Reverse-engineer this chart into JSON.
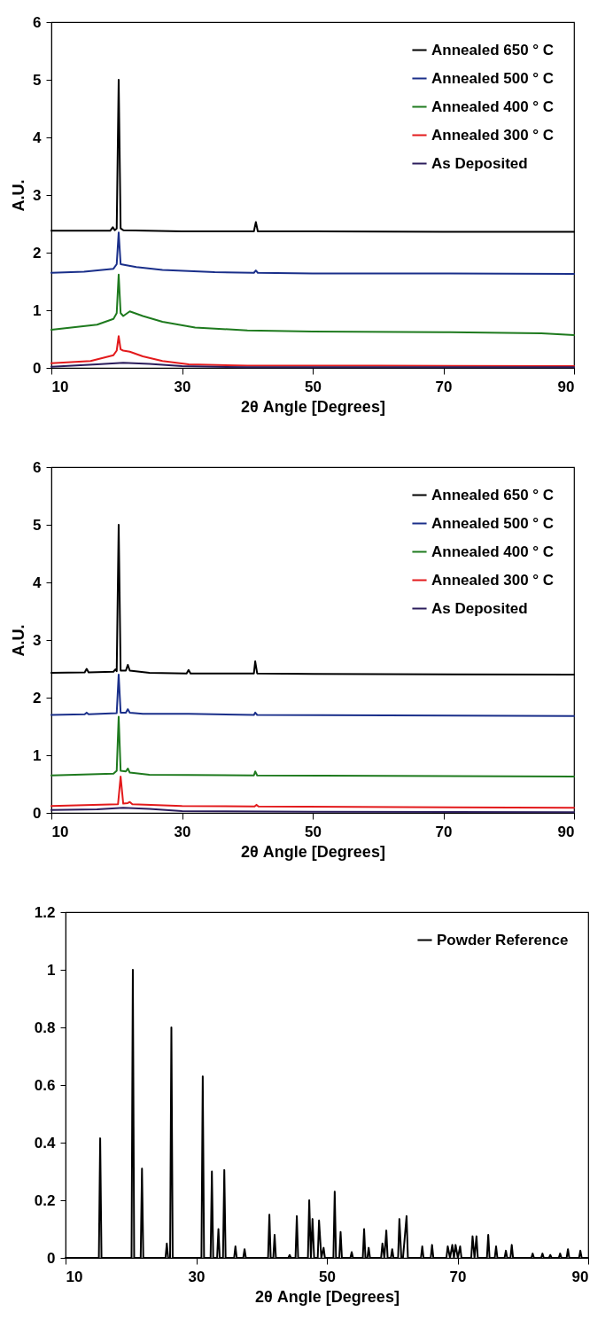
{
  "chart_data": [
    {
      "type": "line",
      "xlabel": "2θ Angle [Degrees]",
      "ylabel": "A.U.",
      "xlim": [
        10,
        90
      ],
      "ylim": [
        0,
        6
      ],
      "xticks": [
        10,
        30,
        50,
        70,
        90
      ],
      "yticks": [
        0,
        1,
        2,
        3,
        4,
        5,
        6
      ],
      "legend": "top right",
      "series": [
        {
          "name": "Annealed 650 ° C",
          "color": "#000000",
          "x": [
            10,
            19,
            19.4,
            19.7,
            20,
            20.3,
            20.6,
            21,
            30,
            41,
            41.3,
            41.6,
            50,
            70,
            90
          ],
          "values": [
            2.38,
            2.38,
            2.44,
            2.39,
            2.42,
            5.0,
            2.42,
            2.39,
            2.37,
            2.37,
            2.53,
            2.37,
            2.37,
            2.36,
            2.36
          ]
        },
        {
          "name": "Annealed 500 ° C",
          "color": "#1a2f8a",
          "x": [
            10,
            15,
            19.5,
            20,
            20.3,
            20.6,
            21.5,
            23,
            27,
            35,
            41,
            41.3,
            41.6,
            50,
            70,
            90
          ],
          "values": [
            1.65,
            1.67,
            1.72,
            1.8,
            2.35,
            1.8,
            1.78,
            1.75,
            1.7,
            1.66,
            1.65,
            1.69,
            1.65,
            1.64,
            1.64,
            1.63
          ]
        },
        {
          "name": "Annealed 400 ° C",
          "color": "#1e7a1e",
          "x": [
            10,
            17,
            19.5,
            20,
            20.3,
            20.6,
            21,
            22,
            24,
            27,
            32,
            40,
            50,
            70,
            85,
            90
          ],
          "values": [
            0.66,
            0.75,
            0.85,
            0.95,
            1.62,
            0.95,
            0.9,
            0.98,
            0.9,
            0.8,
            0.7,
            0.65,
            0.63,
            0.62,
            0.6,
            0.57
          ]
        },
        {
          "name": "Annealed 300 ° C",
          "color": "#e31a1c",
          "x": [
            10,
            16,
            19.5,
            20,
            20.3,
            20.6,
            21,
            22,
            24,
            27,
            31,
            40,
            60,
            90
          ],
          "values": [
            0.08,
            0.12,
            0.22,
            0.3,
            0.55,
            0.32,
            0.3,
            0.28,
            0.2,
            0.12,
            0.06,
            0.04,
            0.04,
            0.03
          ]
        },
        {
          "name": "As Deposited",
          "color": "#2b1d5c",
          "x": [
            10,
            17,
            21,
            25,
            30,
            40,
            90
          ],
          "values": [
            0.02,
            0.06,
            0.09,
            0.07,
            0.03,
            0.01,
            0.01
          ]
        }
      ]
    },
    {
      "type": "line",
      "xlabel": "2θ Angle [Degrees]",
      "ylabel": "A.U.",
      "xlim": [
        10,
        90
      ],
      "ylim": [
        0,
        6
      ],
      "xticks": [
        10,
        30,
        50,
        70,
        90
      ],
      "yticks": [
        0,
        1,
        2,
        3,
        4,
        5,
        6
      ],
      "legend": "top right",
      "series": [
        {
          "name": "Annealed 650 ° C",
          "color": "#000000",
          "x": [
            10,
            15.1,
            15.4,
            15.7,
            19.5,
            19.8,
            20.0,
            20.3,
            20.6,
            21.4,
            21.7,
            22.0,
            25,
            30.7,
            31,
            31.3,
            41,
            41.2,
            41.5,
            50,
            90
          ],
          "values": [
            2.43,
            2.44,
            2.5,
            2.44,
            2.45,
            2.49,
            2.46,
            5.0,
            2.47,
            2.47,
            2.57,
            2.47,
            2.43,
            2.42,
            2.48,
            2.42,
            2.42,
            2.63,
            2.42,
            2.41,
            2.4
          ]
        },
        {
          "name": "Annealed 500 ° C",
          "color": "#1a2f8a",
          "x": [
            10,
            15.1,
            15.4,
            15.7,
            20.0,
            20.3,
            20.6,
            21.4,
            21.7,
            22.0,
            24,
            31,
            41,
            41.2,
            41.5,
            90
          ],
          "values": [
            1.7,
            1.71,
            1.74,
            1.71,
            1.73,
            2.4,
            1.74,
            1.74,
            1.8,
            1.74,
            1.72,
            1.72,
            1.7,
            1.74,
            1.7,
            1.68
          ]
        },
        {
          "name": "Annealed 400 ° C",
          "color": "#1e7a1e",
          "x": [
            10,
            19.5,
            20.0,
            20.3,
            20.6,
            21.4,
            21.7,
            22.0,
            25,
            41,
            41.2,
            41.5,
            90
          ],
          "values": [
            0.65,
            0.68,
            0.73,
            1.67,
            0.73,
            0.72,
            0.77,
            0.7,
            0.66,
            0.65,
            0.72,
            0.65,
            0.63
          ]
        },
        {
          "name": "Annealed 300 ° C",
          "color": "#e31a1c",
          "x": [
            10,
            20.2,
            20.6,
            21.0,
            21.7,
            22,
            22.4,
            30,
            41.1,
            41.4,
            41.7,
            90
          ],
          "values": [
            0.12,
            0.15,
            0.63,
            0.16,
            0.17,
            0.19,
            0.15,
            0.12,
            0.11,
            0.14,
            0.11,
            0.09
          ]
        },
        {
          "name": "As Deposited",
          "color": "#2b1d5c",
          "x": [
            10,
            17,
            21,
            25,
            30,
            50,
            90
          ],
          "values": [
            0.05,
            0.06,
            0.09,
            0.07,
            0.03,
            0.02,
            0.01
          ]
        }
      ]
    },
    {
      "type": "line",
      "xlabel": "2θ Angle [Degrees]",
      "xlim": [
        10,
        90
      ],
      "ylim": [
        0,
        1.2
      ],
      "xticks": [
        10,
        30,
        50,
        70,
        90
      ],
      "yticks": [
        0,
        0.2,
        0.4,
        0.6,
        0.8,
        1,
        1.2
      ],
      "legend": "top right",
      "series": [
        {
          "name": "Powder Reference",
          "color": "#000000",
          "x": [
            10,
            15.1,
            15.3,
            15.5,
            20.1,
            20.3,
            20.5,
            21.5,
            21.7,
            21.9,
            25.3,
            25.5,
            25.7,
            26.0,
            26.2,
            26.4,
            30.8,
            31.0,
            31.2,
            32.2,
            32.4,
            32.6,
            33.2,
            33.4,
            33.6,
            34.1,
            34.3,
            34.5,
            35.8,
            36.0,
            36.2,
            37.2,
            37.4,
            37.6,
            41.0,
            41.2,
            41.4,
            41.8,
            42.0,
            42.2,
            44.1,
            44.3,
            44.5,
            45.2,
            45.4,
            45.6,
            47.1,
            47.3,
            47.55,
            47.8,
            48.05,
            48.6,
            48.8,
            49.15,
            49.5,
            49.7,
            51.0,
            51.2,
            51.4,
            51.9,
            52.1,
            52.3,
            53.6,
            53.8,
            54.0,
            55.5,
            55.7,
            55.9,
            56.2,
            56.4,
            56.6,
            58.3,
            58.5,
            58.8,
            59.1,
            59.3,
            59.8,
            60.0,
            60.2,
            60.9,
            61.1,
            61.4,
            61.65,
            62.2,
            62.4,
            64.4,
            64.6,
            64.8,
            65.9,
            66.1,
            66.3,
            68.3,
            68.5,
            68.85,
            69.2,
            69.45,
            69.7,
            70.05,
            70.4,
            70.6,
            72.1,
            72.3,
            72.6,
            72.9,
            73.1,
            74.5,
            74.7,
            74.9,
            75.7,
            75.9,
            76.1,
            77.2,
            77.4,
            77.6,
            78.1,
            78.3,
            78.5,
            81.3,
            81.5,
            81.7,
            82.8,
            83.0,
            83.2,
            84.0,
            84.2,
            84.4,
            85.5,
            85.7,
            85.9,
            86.7,
            86.9,
            87.1,
            88.6,
            88.8,
            89.0,
            90
          ],
          "values": [
            0,
            0,
            0.415,
            0,
            0,
            1,
            0,
            0,
            0.31,
            0,
            0,
            0.05,
            0,
            0,
            0.8,
            0,
            0,
            0.63,
            0,
            0,
            0.3,
            0,
            0,
            0.1,
            0,
            0,
            0.305,
            0,
            0,
            0.04,
            0,
            0,
            0.03,
            0,
            0,
            0.15,
            0,
            0,
            0.08,
            0,
            0,
            0.01,
            0,
            0,
            0.145,
            0,
            0,
            0.2,
            0,
            0.135,
            0,
            0,
            0.13,
            0,
            0.035,
            0,
            0,
            0.23,
            0,
            0,
            0.09,
            0,
            0,
            0.02,
            0,
            0,
            0.1,
            0,
            0,
            0.035,
            0,
            0,
            0.05,
            0,
            0.095,
            0,
            0,
            0.03,
            0,
            0,
            0.135,
            0,
            0,
            0.145,
            0,
            0,
            0.04,
            0,
            0,
            0.045,
            0,
            0,
            0.04,
            0,
            0.045,
            0,
            0.045,
            0,
            0.04,
            0,
            0,
            0.075,
            0,
            0.075,
            0,
            0,
            0.08,
            0,
            0,
            0.04,
            0,
            0,
            0.025,
            0,
            0,
            0.045,
            0,
            0,
            0.015,
            0,
            0,
            0.015,
            0,
            0,
            0.01,
            0,
            0,
            0.015,
            0,
            0,
            0.03,
            0,
            0,
            0.025,
            0,
            0
          ]
        }
      ]
    }
  ]
}
